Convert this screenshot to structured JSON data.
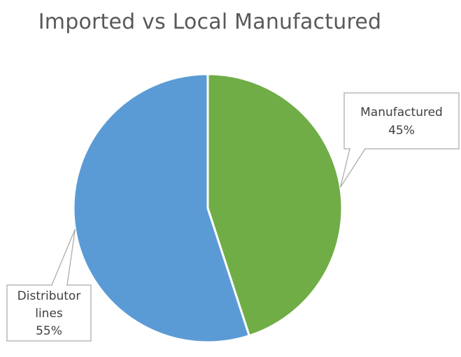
{
  "chart_data": {
    "type": "pie",
    "title": "Imported vs Local Manufactured",
    "slices": [
      {
        "name": "Manufactured",
        "value": 45,
        "label_lines": [
          "Manufactured",
          "45%"
        ],
        "color": "#70ad47"
      },
      {
        "name": "Distributor lines",
        "value": 55,
        "label_lines": [
          "Distributor",
          "lines",
          "55%"
        ],
        "color": "#5b9bd5"
      }
    ],
    "start": "12 o'clock",
    "direction": "clockwise",
    "label_style": "callout",
    "legend": "none"
  }
}
